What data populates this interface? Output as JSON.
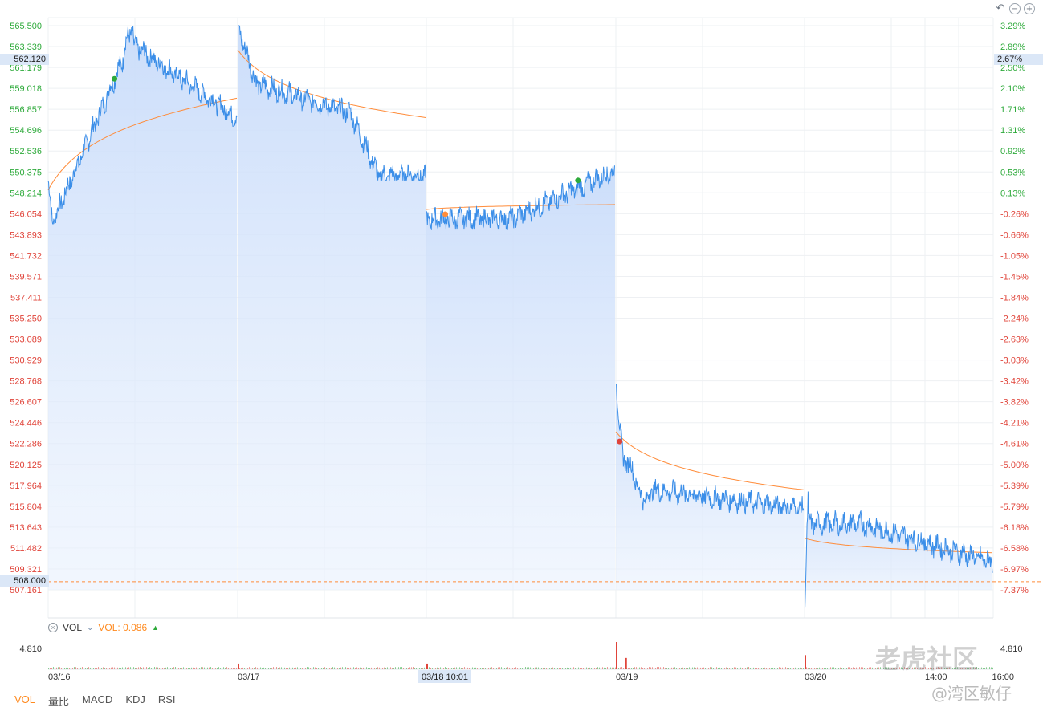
{
  "toolbar": {
    "icons": [
      "undo-icon",
      "zoom-out-icon",
      "zoom-in-icon"
    ],
    "undo_glyph": "↶",
    "zoom_out_glyph": "−",
    "zoom_in_glyph": "+"
  },
  "colors": {
    "price_line": "#3b8ee8",
    "price_area_top": "#cfe0fb",
    "avg_line": "#ff8c3a",
    "up_text": "#2eaa3b",
    "down_text": "#e0443a",
    "grid": "#eef0f3",
    "ref_line": "#ff8c3a",
    "label_bg": "#dbe7f7"
  },
  "chart_data": {
    "type": "line",
    "title": "",
    "reference_price": 547.43,
    "current_price_label": "508.000",
    "crosshair_price_label": "562.120",
    "crosshair_pct_label": "2.67%",
    "crosshair_time_label": "03/18 10:01",
    "y_left_ticks": [
      "565.500",
      "563.339",
      "561.179",
      "559.018",
      "556.857",
      "554.696",
      "552.536",
      "550.375",
      "548.214",
      "546.054",
      "543.893",
      "541.732",
      "539.571",
      "537.411",
      "535.250",
      "533.089",
      "530.929",
      "528.768",
      "526.607",
      "524.446",
      "522.286",
      "520.125",
      "517.964",
      "515.804",
      "513.643",
      "511.482",
      "509.321",
      "507.161"
    ],
    "y_right_ticks": [
      "3.29%",
      "2.89%",
      "2.50%",
      "2.10%",
      "1.71%",
      "1.31%",
      "0.92%",
      "0.53%",
      "0.13%",
      "-0.26%",
      "-0.66%",
      "-1.05%",
      "-1.45%",
      "-1.84%",
      "-2.24%",
      "-2.63%",
      "-3.03%",
      "-3.42%",
      "-3.82%",
      "-4.21%",
      "-4.61%",
      "-5.00%",
      "-5.39%",
      "-5.79%",
      "-6.18%",
      "-6.58%",
      "-6.97%",
      "-7.37%"
    ],
    "ylim": [
      507.161,
      565.5
    ],
    "x_ticks": [
      "03/16",
      "03/17",
      "03/18 10:01",
      "03/19",
      "03/20",
      "16:00"
    ],
    "x_sub_label": "14:00",
    "sessions": [
      {
        "date": "03/16",
        "open": 549.5,
        "close": 558.0,
        "high": 565.5,
        "low": 545.0,
        "avg_start": 548.5,
        "avg_end": 558.0
      },
      {
        "date": "03/17",
        "open": 565.5,
        "close": 550.0,
        "high": 565.5,
        "low": 549.5,
        "avg_start": 563.0,
        "avg_end": 556.0
      },
      {
        "date": "03/18",
        "open": 547.0,
        "close": 550.5,
        "high": 551.0,
        "low": 544.5,
        "avg_start": 546.5,
        "avg_end": 547.0
      },
      {
        "date": "03/19",
        "open": 529.0,
        "close": 515.5,
        "high": 529.0,
        "low": 515.0,
        "avg_start": 523.5,
        "avg_end": 517.5
      },
      {
        "date": "03/20",
        "open": 517.5,
        "close": 510.0,
        "high": 517.5,
        "low": 505.0,
        "avg_start": 512.5,
        "avg_end": 511.0
      }
    ],
    "markers": [
      {
        "session": 0,
        "frac": 0.35,
        "price": 560.0,
        "color": "#2eaa3b"
      },
      {
        "session": 2,
        "frac": 0.1,
        "price": 546.0,
        "color": "#ff8c3a"
      },
      {
        "session": 2,
        "frac": 0.8,
        "price": 549.5,
        "color": "#2eaa3b"
      },
      {
        "session": 3,
        "frac": 0.02,
        "price": 522.5,
        "color": "#e0443a"
      }
    ],
    "volume": {
      "indicator": "VOL",
      "value_label": "VOL: 0.086",
      "max_tick": "4.810",
      "spikes": [
        {
          "session": 1,
          "frac": 0.0,
          "value": 1.0
        },
        {
          "session": 2,
          "frac": 0.0,
          "value": 1.0
        },
        {
          "session": 3,
          "frac": 0.0,
          "value": 4.81
        },
        {
          "session": 3,
          "frac": 0.05,
          "value": 2.0
        },
        {
          "session": 4,
          "frac": 0.0,
          "value": 2.5
        }
      ]
    }
  },
  "vol_panel": {
    "indicator_name": "VOL",
    "value_label": "VOL: 0.086",
    "arrow": "▲",
    "close_glyph": "×",
    "chevron": "⌄"
  },
  "indicator_tabs": [
    "VOL",
    "量比",
    "MACD",
    "KDJ",
    "RSI"
  ],
  "watermark": {
    "logo_text": "老虎社区",
    "handle": "@湾区敏仔"
  }
}
